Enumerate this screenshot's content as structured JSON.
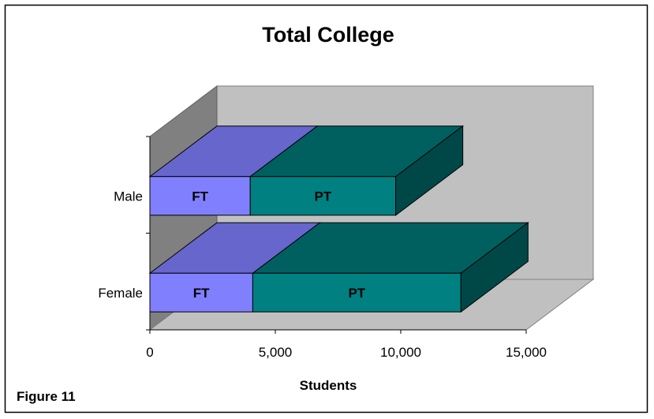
{
  "chart_data": {
    "type": "bar",
    "orientation": "horizontal",
    "stacked": true,
    "three_d": true,
    "title": "Total College",
    "xlabel": "Students",
    "ylabel": "",
    "categories": [
      "Male",
      "Female"
    ],
    "series": [
      {
        "name": "FT",
        "values": [
          4000,
          4100
        ],
        "front_color": "#8080ff",
        "top_color": "#6666cc",
        "side_color": "#5959b2"
      },
      {
        "name": "PT",
        "values": [
          5800,
          8300
        ],
        "front_color": "#008080",
        "top_color": "#006060",
        "side_color": "#004848"
      }
    ],
    "data_labels": [
      "FT",
      "PT"
    ],
    "xlim": [
      0,
      15000
    ],
    "x_ticks": [
      0,
      5000,
      10000,
      15000
    ],
    "x_tick_labels": [
      "0",
      "5,000",
      "10,000",
      "15,000"
    ],
    "grid": false,
    "legend": "none",
    "wall_color": "#c0c0c0",
    "side_wall_color": "#808080"
  },
  "figure_label": "Figure 11"
}
